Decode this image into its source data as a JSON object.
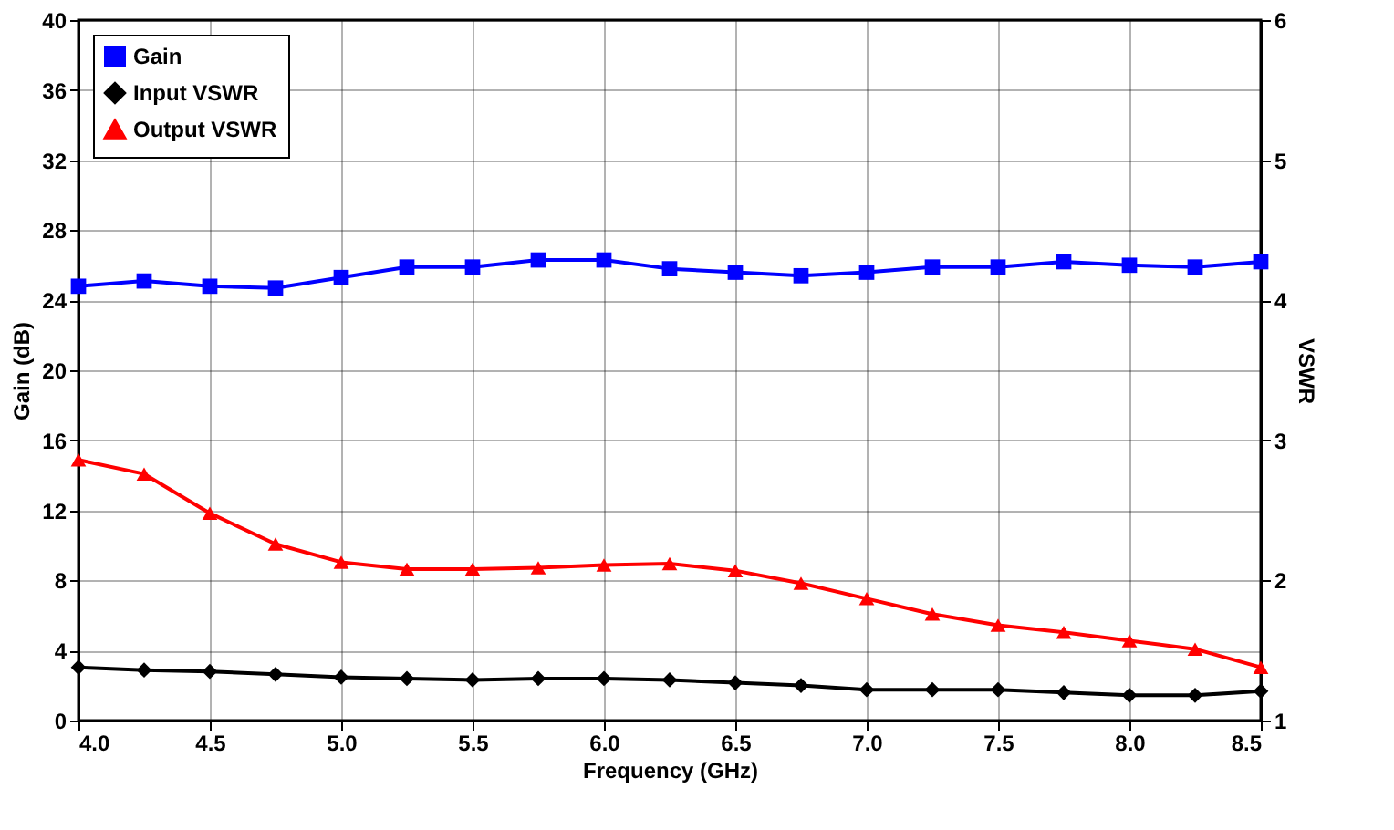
{
  "chart_data": {
    "type": "line",
    "xlabel": "Frequency (GHz)",
    "ylabel": "Gain (dB)",
    "y2label": "VSWR",
    "x": [
      4.0,
      4.25,
      4.5,
      4.75,
      5.0,
      5.25,
      5.5,
      5.75,
      6.0,
      6.25,
      6.5,
      6.75,
      7.0,
      7.25,
      7.5,
      7.75,
      8.0,
      8.25,
      8.5
    ],
    "series": [
      {
        "name": "Gain",
        "color": "#0000ff",
        "marker": "square",
        "values": [
          24.8,
          25.1,
          24.8,
          24.7,
          25.3,
          25.9,
          25.9,
          26.3,
          26.3,
          25.8,
          25.6,
          25.4,
          25.6,
          25.9,
          25.9,
          26.2,
          26.0,
          25.9,
          26.2
        ]
      },
      {
        "name": "Input VSWR",
        "color": "#000000",
        "marker": "diamond",
        "axis": "y2",
        "values": [
          1.38,
          1.36,
          1.35,
          1.33,
          1.31,
          1.3,
          1.29,
          1.3,
          1.3,
          1.29,
          1.27,
          1.25,
          1.22,
          1.22,
          1.22,
          1.2,
          1.18,
          1.18,
          1.21
        ]
      },
      {
        "name": "Output VSWR",
        "color": "#ff0000",
        "marker": "triangle",
        "axis": "y2",
        "values": [
          2.86,
          2.76,
          2.48,
          2.26,
          2.13,
          2.08,
          2.08,
          2.09,
          2.11,
          2.12,
          2.07,
          1.98,
          1.87,
          1.76,
          1.68,
          1.63,
          1.57,
          1.51,
          1.38
        ]
      }
    ],
    "xlim": [
      4.0,
      8.5
    ],
    "xticks": [
      {
        "value": 4,
        "label": "4.0"
      },
      4.5,
      {
        "value": 5,
        "label": "5.0"
      },
      5.5,
      {
        "value": 6,
        "label": "6.0"
      },
      6.5,
      {
        "value": 7,
        "label": "7.0"
      },
      7.5,
      {
        "value": 8,
        "label": "8.0"
      },
      8.5
    ],
    "ylim": [
      0,
      40
    ],
    "yticks": [
      0,
      4,
      8,
      12,
      16,
      20,
      24,
      28,
      32,
      36,
      40
    ],
    "y2lim": [
      1,
      6
    ],
    "y2ticks": [
      1,
      2,
      3,
      4,
      5,
      6
    ],
    "grid": true,
    "legend": "top left",
    "line_style": "solid"
  }
}
